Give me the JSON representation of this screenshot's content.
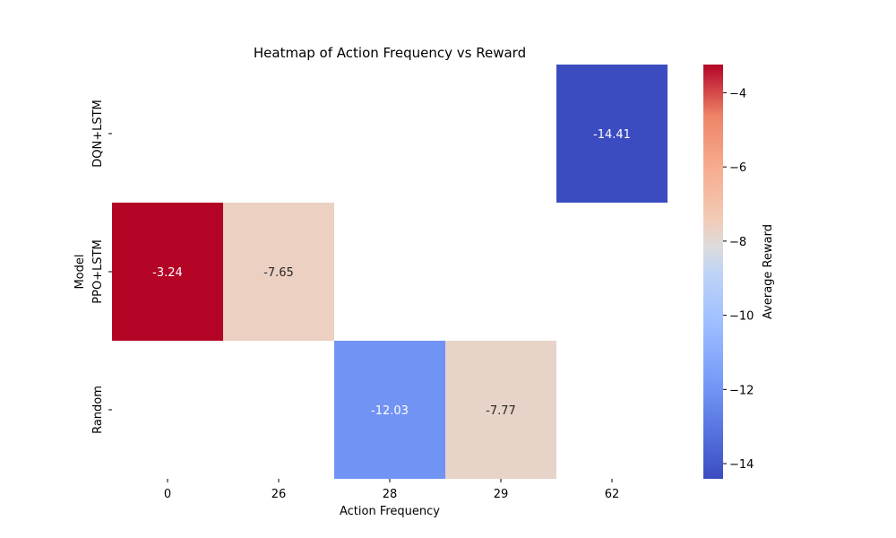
{
  "chart_data": {
    "type": "heatmap",
    "title": "Heatmap of Action Frequency vs Reward",
    "xlabel": "Action Frequency",
    "ylabel": "Model",
    "x_categories": [
      "0",
      "26",
      "28",
      "29",
      "62"
    ],
    "y_categories": [
      "DQN+LSTM",
      "PPO+LSTM",
      "Random"
    ],
    "cells": [
      {
        "row": "DQN+LSTM",
        "col": "62",
        "value": -14.41
      },
      {
        "row": "PPO+LSTM",
        "col": "0",
        "value": -3.24
      },
      {
        "row": "PPO+LSTM",
        "col": "26",
        "value": -7.65
      },
      {
        "row": "Random",
        "col": "28",
        "value": -12.03
      },
      {
        "row": "Random",
        "col": "29",
        "value": -7.77
      }
    ],
    "colorbar": {
      "label": "Average Reward",
      "colormap": "coolwarm",
      "range": [
        -14.41,
        -3.24
      ],
      "ticks": [
        -4,
        -6,
        -8,
        -10,
        -12,
        -14
      ]
    }
  }
}
